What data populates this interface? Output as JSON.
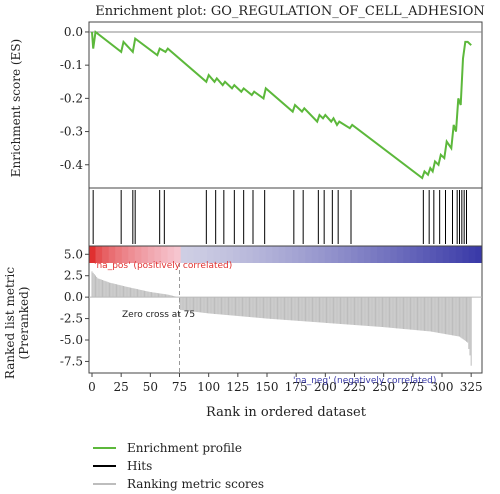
{
  "chart_data": {
    "type": "line",
    "title": "Enrichment plot: GO_REGULATION_OF_CELL_ADHESION",
    "xlabel": "Rank in ordered dataset",
    "xlim": [
      0,
      330
    ],
    "xticks": [
      0,
      25,
      50,
      75,
      100,
      125,
      150,
      175,
      200,
      225,
      250,
      275,
      300,
      325
    ],
    "es_panel": {
      "ylabel": "Enrichment score (ES)",
      "ylim": [
        -0.47,
        0.03
      ],
      "yticks": [
        0.0,
        -0.1,
        -0.2,
        -0.3,
        -0.4
      ],
      "ytick_labels": [
        "0.0",
        "-0.1",
        "-0.2",
        "-0.3",
        "-0.4"
      ],
      "series": [
        {
          "name": "Enrichment profile",
          "color": "#5cb83b",
          "x": [
            0,
            1,
            3,
            25,
            27,
            35,
            37,
            56,
            58,
            63,
            65,
            98,
            100,
            105,
            107,
            112,
            114,
            120,
            122,
            128,
            130,
            137,
            139,
            147,
            149,
            172,
            174,
            180,
            182,
            193,
            195,
            198,
            200,
            205,
            207,
            210,
            212,
            221,
            223,
            283,
            285,
            288,
            290,
            292,
            294,
            297,
            299,
            302,
            304,
            308,
            310,
            312,
            314,
            316,
            318,
            320,
            322,
            325
          ],
          "y": [
            0.0,
            -0.05,
            0.0,
            -0.06,
            -0.03,
            -0.06,
            -0.02,
            -0.07,
            -0.05,
            -0.06,
            -0.05,
            -0.15,
            -0.13,
            -0.15,
            -0.14,
            -0.16,
            -0.15,
            -0.17,
            -0.16,
            -0.18,
            -0.17,
            -0.19,
            -0.18,
            -0.2,
            -0.17,
            -0.24,
            -0.22,
            -0.24,
            -0.23,
            -0.27,
            -0.25,
            -0.26,
            -0.25,
            -0.27,
            -0.26,
            -0.28,
            -0.27,
            -0.29,
            -0.28,
            -0.44,
            -0.42,
            -0.43,
            -0.41,
            -0.42,
            -0.39,
            -0.4,
            -0.37,
            -0.38,
            -0.33,
            -0.35,
            -0.28,
            -0.3,
            -0.2,
            -0.22,
            -0.08,
            -0.03,
            -0.03,
            -0.04
          ]
        }
      ]
    },
    "hits": {
      "name": "Hits",
      "color": "#000000",
      "x": [
        1,
        25,
        35,
        37,
        58,
        62,
        98,
        106,
        113,
        122,
        130,
        138,
        148,
        173,
        181,
        194,
        199,
        206,
        211,
        222,
        284,
        289,
        293,
        298,
        303,
        309,
        313,
        315,
        317,
        319,
        321
      ]
    },
    "metric_panel": {
      "ylabel": "Ranked list metric (Preranked)",
      "ylim": [
        -8.5,
        5.5
      ],
      "yticks": [
        5.0,
        2.5,
        0.0,
        -2.5,
        -5.0,
        -7.5
      ],
      "ytick_labels": [
        "5.0",
        "2.5",
        "0.0",
        "-2.5",
        "-5.0",
        "-7.5"
      ],
      "series": [
        {
          "name": "Ranking metric scores",
          "color": "#bdbdbd",
          "x": [
            0,
            5,
            15,
            30,
            50,
            65,
            74,
            76,
            100,
            150,
            200,
            250,
            290,
            315,
            322,
            324,
            325
          ],
          "y": [
            3.0,
            2.2,
            1.7,
            1.2,
            0.6,
            0.3,
            0.0,
            -1.5,
            -1.9,
            -2.5,
            -3.0,
            -3.5,
            -4.0,
            -4.6,
            -5.3,
            -6.8,
            -8.0
          ]
        }
      ],
      "zero_cross_x": 75,
      "annotations": {
        "positive": "'na_pos' (positively correlated)",
        "zero_cross": "Zero cross at 75",
        "negative": "'na_neg' (negatively correlated)"
      },
      "colors": {
        "positive": "#e03030",
        "negative": "#3a3aa8"
      }
    },
    "legend": {
      "placement": "bottom",
      "entries": [
        {
          "name": "Enrichment profile",
          "color": "#5cb83b"
        },
        {
          "name": "Hits",
          "color": "#000000"
        },
        {
          "name": "Ranking metric scores",
          "color": "#bdbdbd"
        }
      ]
    }
  }
}
